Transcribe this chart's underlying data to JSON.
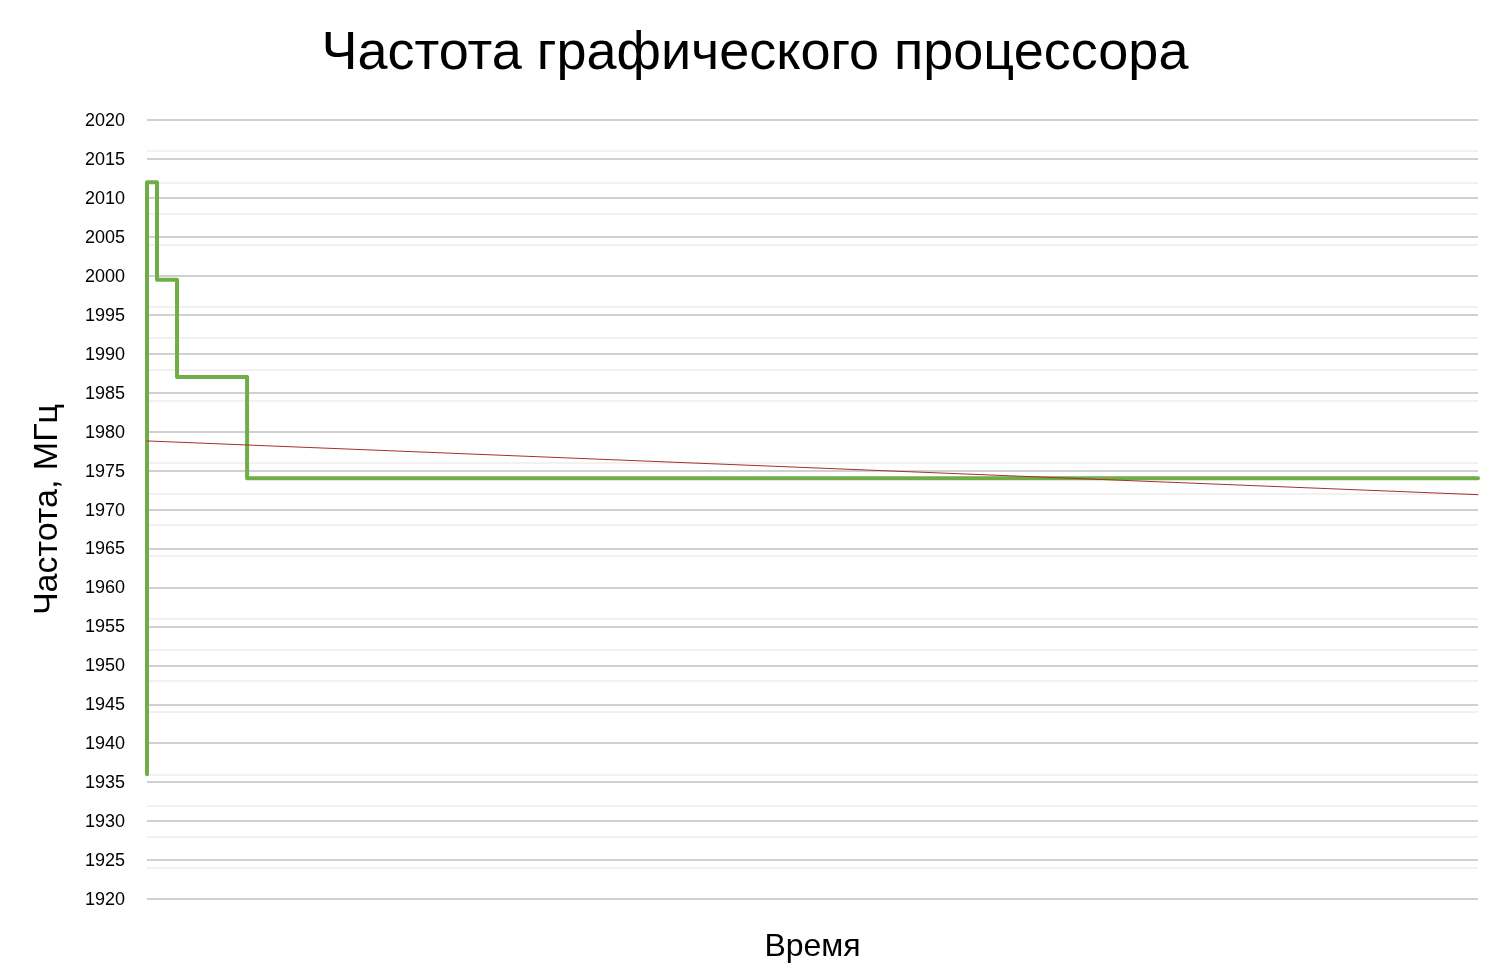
{
  "chart_data": {
    "type": "step",
    "title": "Частота графического процессора",
    "xlabel": "Время",
    "ylabel": "Частота, МГц",
    "categories": [
      null,
      null,
      null,
      null,
      null,
      null,
      null,
      null,
      null,
      null,
      null,
      null,
      null,
      null,
      null,
      null,
      null,
      null,
      null,
      null,
      null,
      null,
      null,
      null,
      null,
      null,
      null,
      null,
      null,
      null,
      null,
      null,
      null,
      null,
      null,
      null,
      null,
      null,
      null,
      null,
      null,
      null,
      null,
      null,
      null,
      null,
      null,
      null,
      null,
      null,
      null,
      null,
      null,
      null,
      null,
      null,
      null,
      null,
      null,
      null,
      null,
      null,
      null,
      null,
      null,
      null,
      null,
      null,
      null,
      null,
      null,
      null,
      null,
      null,
      null,
      null,
      null,
      null,
      null,
      null,
      null,
      null,
      null,
      null,
      null,
      null,
      null,
      null,
      null,
      null,
      null,
      null,
      null,
      null,
      null,
      null,
      null,
      null,
      null,
      null,
      null,
      null,
      null,
      null,
      null,
      null,
      null,
      null,
      null,
      null,
      null,
      null,
      null,
      null,
      null,
      null,
      null,
      null,
      null,
      null,
      null,
      null,
      null,
      null,
      null,
      null,
      null,
      null,
      null,
      null,
      null,
      null,
      null,
      null
    ],
    "series": [
      {
        "type": "step",
        "color": "#70ad47",
        "values": [
          1936,
          2012,
          1999.5,
          1999.5,
          1987,
          1987,
          1987,
          1987,
          1987,
          1987,
          1987,
          1974,
          1974,
          1974,
          1974,
          1974,
          1974,
          1974,
          1974,
          1974,
          1974,
          1974,
          1974,
          1974,
          1974,
          1974,
          1974,
          1974,
          1974,
          1974,
          1974,
          1974,
          1974,
          1974,
          1974,
          1974,
          1974,
          1974,
          1974,
          1974,
          1974,
          1974,
          1974,
          1974,
          1974,
          1974,
          1974,
          1974,
          1974,
          1974,
          1974,
          1974,
          1974,
          1974,
          1974,
          1974,
          1974,
          1974,
          1974,
          1974,
          1974,
          1974,
          1974,
          1974,
          1974,
          1974,
          1974,
          1974,
          1974,
          1974,
          1974,
          1974,
          1974,
          1974,
          1974,
          1974,
          1974,
          1974,
          1974,
          1974,
          1974,
          1974,
          1974,
          1974,
          1974,
          1974,
          1974,
          1974,
          1974,
          1974,
          1974,
          1974,
          1974,
          1974,
          1974,
          1974,
          1974,
          1974,
          1974,
          1974,
          1974,
          1974,
          1974,
          1974,
          1974,
          1974,
          1974,
          1974,
          1974,
          1974,
          1974,
          1974,
          1974,
          1974,
          1974,
          1974,
          1974,
          1974,
          1974,
          1974,
          1974,
          1974,
          1974,
          1974,
          1974,
          1974,
          1974,
          1974,
          1974,
          1974,
          1974,
          1974,
          1974,
          1974
        ]
      },
      {
        "type": "line",
        "color": "#a5312b",
        "values": [
          1978.8,
          null,
          null,
          null,
          null,
          null,
          null,
          null,
          null,
          null,
          null,
          null,
          null,
          null,
          null,
          null,
          null,
          null,
          null,
          null,
          null,
          null,
          null,
          null,
          null,
          null,
          null,
          null,
          null,
          null,
          null,
          null,
          null,
          null,
          null,
          null,
          null,
          null,
          null,
          null,
          null,
          null,
          null,
          null,
          null,
          null,
          null,
          null,
          null,
          null,
          null,
          null,
          null,
          null,
          null,
          null,
          null,
          null,
          null,
          null,
          null,
          null,
          null,
          null,
          null,
          null,
          null,
          null,
          null,
          null,
          null,
          null,
          null,
          null,
          null,
          null,
          null,
          null,
          null,
          null,
          null,
          null,
          null,
          null,
          null,
          null,
          null,
          null,
          null,
          null,
          null,
          null,
          null,
          null,
          null,
          null,
          null,
          null,
          null,
          null,
          null,
          null,
          null,
          null,
          null,
          null,
          null,
          null,
          null,
          null,
          null,
          null,
          null,
          null,
          null,
          null,
          null,
          null,
          null,
          null,
          null,
          null,
          null,
          null,
          null,
          null,
          null,
          null,
          null,
          null,
          null,
          null,
          null,
          1971.9
        ]
      }
    ],
    "ylim": [
      1920,
      2020
    ],
    "yticks": [
      1920,
      1925,
      1930,
      1935,
      1940,
      1945,
      1950,
      1955,
      1960,
      1965,
      1970,
      1975,
      1980,
      1985,
      1990,
      1995,
      2000,
      2005,
      2010,
      2015,
      2020
    ],
    "grid": "y",
    "marker": "none",
    "line_style": "solid",
    "tick_labels": "y"
  }
}
